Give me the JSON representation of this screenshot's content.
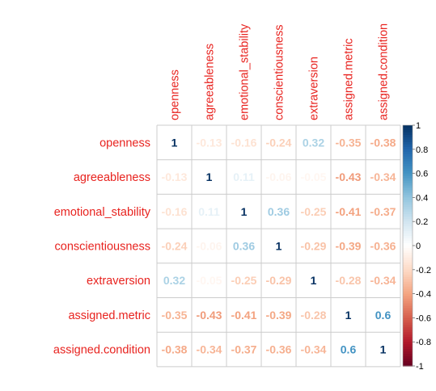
{
  "chart_data": {
    "type": "heatmap",
    "variables": [
      "openness",
      "agreeableness",
      "emotional_stability",
      "conscientiousness",
      "extraversion",
      "assigned.metric",
      "assigned.condition"
    ],
    "matrix": [
      [
        1,
        -0.13,
        -0.16,
        -0.24,
        0.32,
        -0.35,
        -0.38
      ],
      [
        -0.13,
        1,
        0.11,
        -0.06,
        -0.05,
        -0.43,
        -0.34
      ],
      [
        -0.16,
        0.11,
        1,
        0.36,
        -0.25,
        -0.41,
        -0.37
      ],
      [
        -0.24,
        -0.06,
        0.36,
        1,
        -0.29,
        -0.39,
        -0.36
      ],
      [
        0.32,
        -0.05,
        -0.25,
        -0.29,
        1,
        -0.28,
        -0.34
      ],
      [
        -0.35,
        -0.43,
        -0.41,
        -0.39,
        -0.28,
        1,
        0.6
      ],
      [
        -0.38,
        -0.34,
        -0.37,
        -0.36,
        -0.34,
        0.6,
        1
      ]
    ],
    "label_color": "#e8231f",
    "grid": true,
    "colorbar": {
      "ticks": [
        "1",
        "0.8",
        "0.6",
        "0.4",
        "0.2",
        "0",
        "-0.2",
        "-0.4",
        "-0.6",
        "-0.8",
        "-1"
      ],
      "range": [
        -1,
        1
      ],
      "placement": "right",
      "colors": [
        "#67001f",
        "#b2182b",
        "#d6604d",
        "#f4a582",
        "#fddbc7",
        "#ffffff",
        "#d1e5f0",
        "#92c5de",
        "#4393c3",
        "#2166ac",
        "#053061"
      ]
    }
  }
}
